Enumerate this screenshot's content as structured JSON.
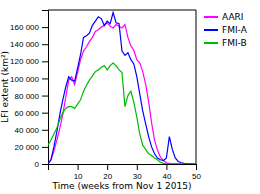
{
  "chart_data": {
    "type": "line",
    "xlabel": "Time (weeks from Nov 1 2015)",
    "ylabel": "LFI extent (km²)",
    "xlim": [
      0,
      50
    ],
    "ylim": [
      0,
      180000
    ],
    "xticks": [
      10,
      20,
      30,
      40,
      50
    ],
    "yticks": [
      0,
      {
        "value": 20000,
        "label": "20 000"
      },
      {
        "value": 40000,
        "label": "40 000"
      },
      {
        "value": 60000,
        "label": "60 000"
      },
      {
        "value": 80000,
        "label": "80 000"
      },
      {
        "value": 100000,
        "label": "100 000"
      },
      {
        "value": 120000,
        "label": "120 000"
      },
      {
        "value": 140000,
        "label": "140 000"
      },
      {
        "value": 160000,
        "label": "160 000"
      }
    ],
    "grid": false,
    "legend": "right",
    "x": [
      0,
      1,
      2,
      3,
      4,
      5,
      6,
      7,
      8,
      9,
      10,
      11,
      12,
      13,
      14,
      15,
      16,
      17,
      18,
      19,
      20,
      21,
      22,
      23,
      24,
      25,
      26,
      27,
      28,
      29,
      30,
      31,
      32,
      33,
      34,
      35,
      36,
      37,
      38,
      39,
      40,
      41,
      42,
      43,
      44,
      45,
      46,
      47,
      48,
      49,
      50
    ],
    "series": [
      {
        "name": "AARI",
        "color": "#ff00ff",
        "values": [
          0,
          5000,
          15000,
          28000,
          42000,
          58000,
          78000,
          98000,
          102000,
          93000,
          107000,
          122000,
          132000,
          137000,
          143000,
          148000,
          155000,
          157000,
          160000,
          162000,
          165000,
          161000,
          159000,
          163000,
          161000,
          159000,
          163000,
          148000,
          138000,
          133000,
          122000,
          118000,
          108000,
          93000,
          73000,
          48000,
          28000,
          16000,
          8000,
          4000,
          1500,
          800,
          300,
          100,
          50,
          20,
          5,
          2,
          1,
          0,
          0
        ]
      },
      {
        "name": "FMI-A",
        "color": "#0000ff",
        "values": [
          0,
          5000,
          20000,
          38000,
          58000,
          75000,
          90000,
          102000,
          98000,
          97000,
          112000,
          128000,
          148000,
          150000,
          153000,
          162000,
          167000,
          172000,
          170000,
          162000,
          167000,
          164000,
          177000,
          165000,
          164000,
          132000,
          127000,
          130000,
          122000,
          117000,
          102000,
          82000,
          62000,
          47000,
          32000,
          20000,
          12000,
          7000,
          5000,
          4000,
          7000,
          32000,
          17000,
          7000,
          3000,
          1500,
          700,
          300,
          200,
          100,
          15
        ]
      },
      {
        "name": "FMI-B",
        "color": "#00bb00",
        "values": [
          22000,
          28000,
          35000,
          42000,
          52000,
          60000,
          65000,
          67000,
          67000,
          65000,
          70000,
          75000,
          85000,
          92000,
          98000,
          103000,
          108000,
          110000,
          113000,
          115000,
          110000,
          115000,
          118000,
          115000,
          110000,
          107000,
          67000,
          80000,
          85000,
          72000,
          55000,
          35000,
          22000,
          17000,
          12000,
          10000,
          7000,
          5000,
          2000,
          700,
          300,
          200,
          100,
          20,
          10,
          5,
          2,
          1,
          0,
          0,
          0
        ]
      }
    ]
  }
}
